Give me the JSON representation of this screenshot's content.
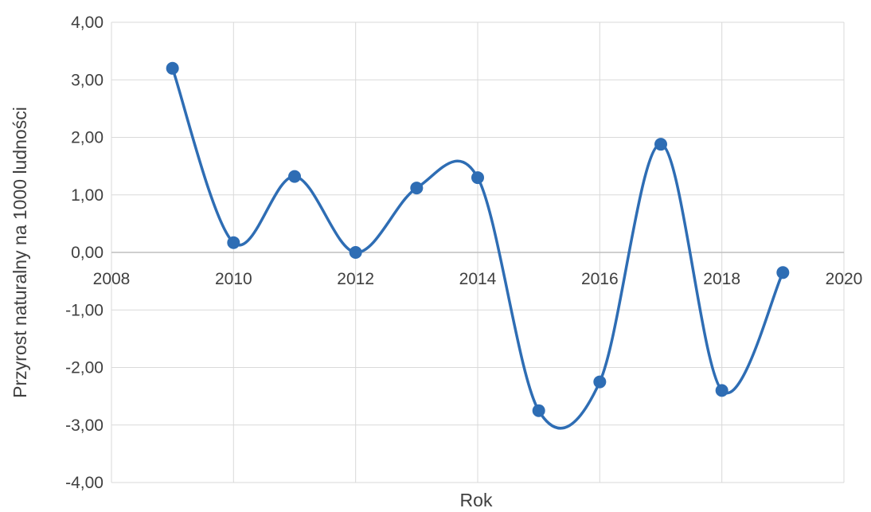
{
  "chart_data": {
    "type": "scatter",
    "title": "",
    "xlabel": "Rok",
    "ylabel": "Przyrost naturalny na 1000 ludności",
    "xlim": [
      2008,
      2020
    ],
    "ylim": [
      -4,
      4
    ],
    "x_ticks": [
      2008,
      2010,
      2012,
      2014,
      2016,
      2018,
      2020
    ],
    "y_ticks": [
      -4,
      -3,
      -2,
      -1,
      0,
      1,
      2,
      3,
      4
    ],
    "x_tick_labels": [
      "2008",
      "2010",
      "2012",
      "2014",
      "2016",
      "2018",
      "2020"
    ],
    "y_tick_labels": [
      "-4,00",
      "-3,00",
      "-2,00",
      "-1,00",
      "0,00",
      "1,00",
      "2,00",
      "3,00",
      "4,00"
    ],
    "grid": true,
    "smooth_line": true,
    "legend": "none",
    "series": [
      {
        "color": "#2e6db4",
        "points": [
          {
            "x": 2009,
            "y": 3.2
          },
          {
            "x": 2010,
            "y": 0.17
          },
          {
            "x": 2011,
            "y": 1.32
          },
          {
            "x": 2012,
            "y": 0.0
          },
          {
            "x": 2013,
            "y": 1.12
          },
          {
            "x": 2014,
            "y": 1.3
          },
          {
            "x": 2015,
            "y": -2.75
          },
          {
            "x": 2016,
            "y": -2.25
          },
          {
            "x": 2017,
            "y": 1.88
          },
          {
            "x": 2018,
            "y": -2.4
          },
          {
            "x": 2019,
            "y": -0.35
          }
        ]
      }
    ]
  }
}
